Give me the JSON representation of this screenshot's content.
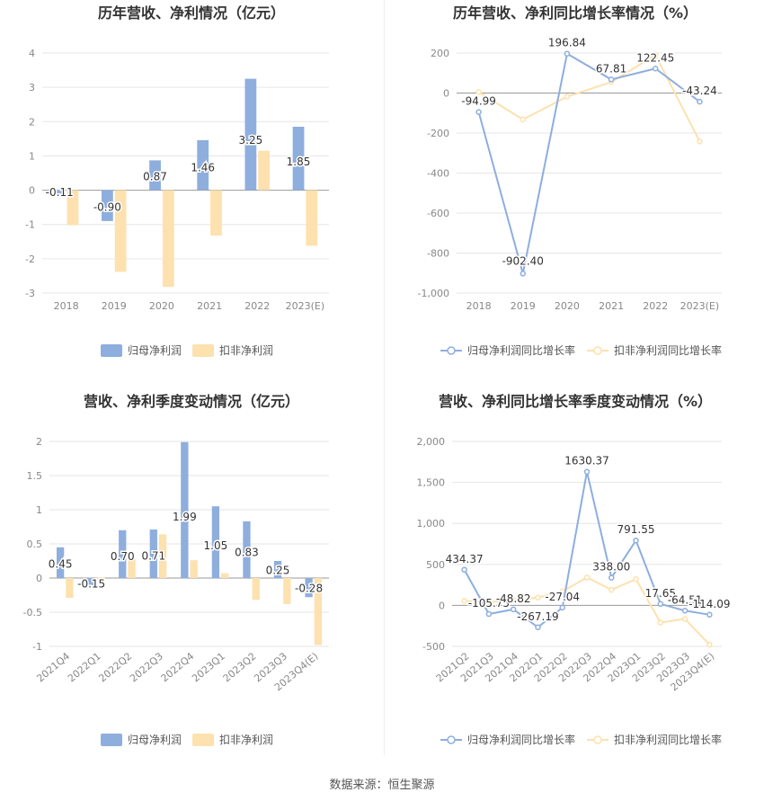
{
  "colors": {
    "blue": "#8eaede",
    "blue_edge": "#6f93cf",
    "yellow": "#fde1ae",
    "grid": "#e6e6e6",
    "axis": "#bbbbbb",
    "tick": "#888888",
    "label": "#333333",
    "title": "#333333"
  },
  "source": "数据来源：恒生聚源",
  "chart_data": [
    {
      "type": "bar",
      "title": "历年营收、净利情况（亿元）",
      "categories": [
        "2018",
        "2019",
        "2020",
        "2021",
        "2022",
        "2023(E)"
      ],
      "yticks": [
        4,
        3,
        2,
        1,
        0,
        -1,
        -2,
        -3
      ],
      "ylim": [
        -3,
        4
      ],
      "series": [
        {
          "name": "归母净利润",
          "values": [
            -0.11,
            -0.9,
            0.87,
            1.46,
            3.25,
            1.85
          ],
          "labels": [
            "-0.11",
            "-0.90",
            "0.87",
            "1.46",
            "3.25",
            "1.85"
          ]
        },
        {
          "name": "扣非净利润",
          "values": [
            -1.02,
            -2.38,
            -2.82,
            -1.32,
            1.15,
            -1.62
          ]
        }
      ],
      "legend": "bottom"
    },
    {
      "type": "line",
      "title": "历年营收、净利同比增长率情况（%）",
      "categories": [
        "2018",
        "2019",
        "2020",
        "2021",
        "2022",
        "2023(E)"
      ],
      "yticks": [
        200,
        0,
        -200,
        -400,
        -600,
        -800,
        -1000
      ],
      "ytick_labels": [
        "200",
        "0",
        "-200",
        "-400",
        "-600",
        "-800",
        "-1,000"
      ],
      "ylim": [
        -1000,
        200
      ],
      "series": [
        {
          "name": "归母净利润同比增长率",
          "values": [
            -94.99,
            -902.4,
            196.84,
            67.81,
            122.45,
            -43.24
          ],
          "labels": [
            "-94.99",
            "-902.40",
            "196.84",
            "67.81",
            "122.45",
            "-43.24"
          ]
        },
        {
          "name": "扣非净利润同比增长率",
          "values": [
            5,
            -132,
            -18,
            55,
            190,
            -242
          ]
        }
      ],
      "legend": "bottom"
    },
    {
      "type": "bar",
      "title": "营收、净利季度变动情况（亿元）",
      "categories": [
        "2021Q4",
        "2022Q1",
        "2022Q2",
        "2022Q3",
        "2022Q4",
        "2023Q1",
        "2023Q2",
        "2023Q3",
        "2023Q4(E)"
      ],
      "yticks": [
        2,
        1.5,
        1,
        0.5,
        0,
        -0.5,
        -1
      ],
      "ytick_labels": [
        "2",
        "1.5",
        "1",
        "0.5",
        "0",
        "-0.5",
        "-1"
      ],
      "ylim": [
        -1,
        2
      ],
      "series": [
        {
          "name": "归母净利润",
          "values": [
            0.45,
            -0.15,
            0.7,
            0.71,
            1.99,
            1.05,
            0.83,
            0.25,
            -0.28
          ],
          "labels": [
            "0.45",
            "-0.15",
            "0.70",
            "0.71",
            "1.99",
            "1.05",
            "0.83",
            "0.25",
            "-0.28"
          ]
        },
        {
          "name": "扣非净利润",
          "values": [
            -0.29,
            0.01,
            0.28,
            0.64,
            0.26,
            0.07,
            -0.32,
            -0.38,
            -0.98
          ]
        }
      ],
      "legend": "bottom"
    },
    {
      "type": "line",
      "title": "营收、净利同比增长率季度变动情况（%）",
      "categories": [
        "2021Q2",
        "2021Q3",
        "2021Q4",
        "2022Q1",
        "2022Q2",
        "2022Q3",
        "2022Q4",
        "2023Q1",
        "2023Q2",
        "2023Q3",
        "2023Q4(E)"
      ],
      "yticks": [
        2000,
        1500,
        1000,
        500,
        0,
        -500
      ],
      "ytick_labels": [
        "2,000",
        "1,500",
        "1,000",
        "500",
        "0",
        "-500"
      ],
      "ylim": [
        -500,
        2000
      ],
      "series": [
        {
          "name": "归母净利润同比增长率",
          "values": [
            434.37,
            -105.75,
            -48.82,
            -267.19,
            -27.04,
            1630.37,
            338.0,
            791.55,
            17.65,
            -64.51,
            -114.09
          ],
          "labels": [
            "434.37",
            "-105.75",
            "-48.82",
            "-267.19",
            "-27.04",
            "1630.37",
            "338.00",
            "791.55",
            "17.65",
            "-64.51",
            "-114.09"
          ]
        },
        {
          "name": "扣非净利润同比增长率",
          "values": [
            55,
            40,
            60,
            95,
            170,
            340,
            190,
            320,
            -210,
            -165,
            -480
          ]
        }
      ],
      "legend": "bottom"
    }
  ]
}
